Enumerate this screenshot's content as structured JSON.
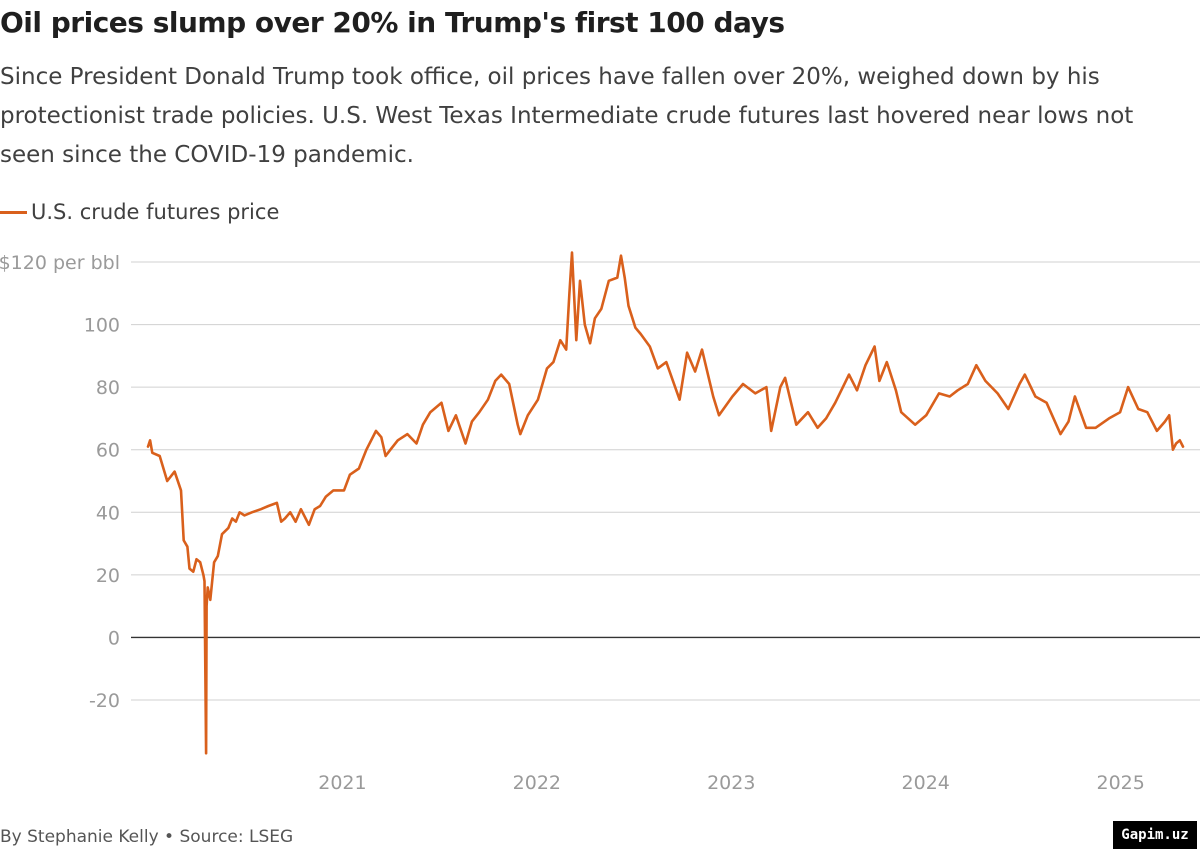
{
  "header": {
    "title": "Oil prices slump over 20% in Trump's first 100 days",
    "subtitle": "Since President Donald Trump took office, oil prices have fallen over 20%, weighed down by his protectionist trade policies. U.S. West Texas Intermediate crude futures last hovered near lows not seen since the COVID-19 pandemic."
  },
  "footer": {
    "credit": "By Stephanie Kelly • Source: LSEG",
    "watermark": "Gapim.uz"
  },
  "colors": {
    "line": "#d9601c",
    "grid": "#d0d0d0",
    "zero": "#333333",
    "tick": "#9a9a9a"
  },
  "chart_data": {
    "type": "line",
    "title": "Oil prices slump over 20% in Trump's first 100 days",
    "ylabel": "",
    "xlabel": "",
    "ylim": [
      -40,
      120
    ],
    "xlim": [
      "2020-01-02",
      "2025-04-28"
    ],
    "grid": true,
    "legend_position": "top-left",
    "yticks": [
      {
        "value": 120,
        "label": "$120 per bbl"
      },
      {
        "value": 100,
        "label": "100"
      },
      {
        "value": 80,
        "label": "80"
      },
      {
        "value": 60,
        "label": "60"
      },
      {
        "value": 40,
        "label": "40"
      },
      {
        "value": 20,
        "label": "20"
      },
      {
        "value": 0,
        "label": "0"
      },
      {
        "value": -20,
        "label": "-20"
      }
    ],
    "xticks": [
      {
        "value": "2021-01-01",
        "label": "2021"
      },
      {
        "value": "2022-01-01",
        "label": "2022"
      },
      {
        "value": "2023-01-01",
        "label": "2023"
      },
      {
        "value": "2024-01-01",
        "label": "2024"
      },
      {
        "value": "2025-01-01",
        "label": "2025"
      }
    ],
    "series": [
      {
        "name": "U.S. crude futures price",
        "color": "#d9601c",
        "points": [
          [
            "2020-01-02",
            61
          ],
          [
            "2020-01-06",
            63
          ],
          [
            "2020-01-10",
            59
          ],
          [
            "2020-01-24",
            58
          ],
          [
            "2020-02-07",
            50
          ],
          [
            "2020-02-21",
            53
          ],
          [
            "2020-03-04",
            47
          ],
          [
            "2020-03-09",
            31
          ],
          [
            "2020-03-16",
            29
          ],
          [
            "2020-03-20",
            22
          ],
          [
            "2020-03-27",
            21
          ],
          [
            "2020-04-02",
            25
          ],
          [
            "2020-04-09",
            24
          ],
          [
            "2020-04-15",
            20
          ],
          [
            "2020-04-17",
            18
          ],
          [
            "2020-04-20",
            -37
          ],
          [
            "2020-04-21",
            10
          ],
          [
            "2020-04-23",
            16
          ],
          [
            "2020-04-28",
            12
          ],
          [
            "2020-05-05",
            24
          ],
          [
            "2020-05-12",
            26
          ],
          [
            "2020-05-20",
            33
          ],
          [
            "2020-06-01",
            35
          ],
          [
            "2020-06-08",
            38
          ],
          [
            "2020-06-15",
            37
          ],
          [
            "2020-06-22",
            40
          ],
          [
            "2020-07-01",
            39
          ],
          [
            "2020-07-15",
            40
          ],
          [
            "2020-08-01",
            41
          ],
          [
            "2020-08-15",
            42
          ],
          [
            "2020-08-31",
            43
          ],
          [
            "2020-09-08",
            37
          ],
          [
            "2020-09-15",
            38
          ],
          [
            "2020-09-25",
            40
          ],
          [
            "2020-10-05",
            37
          ],
          [
            "2020-10-15",
            41
          ],
          [
            "2020-10-30",
            36
          ],
          [
            "2020-11-10",
            41
          ],
          [
            "2020-11-20",
            42
          ],
          [
            "2020-12-01",
            45
          ],
          [
            "2020-12-15",
            47
          ],
          [
            "2021-01-04",
            47
          ],
          [
            "2021-01-15",
            52
          ],
          [
            "2021-02-01",
            54
          ],
          [
            "2021-02-15",
            60
          ],
          [
            "2021-03-05",
            66
          ],
          [
            "2021-03-15",
            64
          ],
          [
            "2021-03-23",
            58
          ],
          [
            "2021-04-01",
            60
          ],
          [
            "2021-04-15",
            63
          ],
          [
            "2021-05-03",
            65
          ],
          [
            "2021-05-20",
            62
          ],
          [
            "2021-06-01",
            68
          ],
          [
            "2021-06-15",
            72
          ],
          [
            "2021-07-06",
            75
          ],
          [
            "2021-07-19",
            66
          ],
          [
            "2021-08-02",
            71
          ],
          [
            "2021-08-20",
            62
          ],
          [
            "2021-09-01",
            69
          ],
          [
            "2021-09-15",
            72
          ],
          [
            "2021-10-01",
            76
          ],
          [
            "2021-10-15",
            82
          ],
          [
            "2021-10-26",
            84
          ],
          [
            "2021-11-10",
            81
          ],
          [
            "2021-11-26",
            68
          ],
          [
            "2021-12-01",
            65
          ],
          [
            "2021-12-15",
            71
          ],
          [
            "2022-01-03",
            76
          ],
          [
            "2022-01-20",
            86
          ],
          [
            "2022-02-01",
            88
          ],
          [
            "2022-02-14",
            95
          ],
          [
            "2022-02-25",
            92
          ],
          [
            "2022-03-03",
            110
          ],
          [
            "2022-03-08",
            123
          ],
          [
            "2022-03-16",
            95
          ],
          [
            "2022-03-23",
            114
          ],
          [
            "2022-04-01",
            100
          ],
          [
            "2022-04-11",
            94
          ],
          [
            "2022-04-20",
            102
          ],
          [
            "2022-05-02",
            105
          ],
          [
            "2022-05-16",
            114
          ],
          [
            "2022-06-01",
            115
          ],
          [
            "2022-06-08",
            122
          ],
          [
            "2022-06-15",
            115
          ],
          [
            "2022-06-22",
            106
          ],
          [
            "2022-07-05",
            99
          ],
          [
            "2022-07-15",
            97
          ],
          [
            "2022-08-01",
            93
          ],
          [
            "2022-08-16",
            86
          ],
          [
            "2022-09-01",
            88
          ],
          [
            "2022-09-26",
            76
          ],
          [
            "2022-10-10",
            91
          ],
          [
            "2022-10-25",
            85
          ],
          [
            "2022-11-07",
            92
          ],
          [
            "2022-11-28",
            77
          ],
          [
            "2022-12-09",
            71
          ],
          [
            "2023-01-03",
            77
          ],
          [
            "2023-01-23",
            81
          ],
          [
            "2023-02-15",
            78
          ],
          [
            "2023-03-08",
            80
          ],
          [
            "2023-03-17",
            66
          ],
          [
            "2023-04-03",
            80
          ],
          [
            "2023-04-12",
            83
          ],
          [
            "2023-05-03",
            68
          ],
          [
            "2023-05-25",
            72
          ],
          [
            "2023-06-12",
            67
          ],
          [
            "2023-06-28",
            70
          ],
          [
            "2023-07-15",
            75
          ],
          [
            "2023-08-10",
            84
          ],
          [
            "2023-08-25",
            79
          ],
          [
            "2023-09-10",
            87
          ],
          [
            "2023-09-27",
            93
          ],
          [
            "2023-10-06",
            82
          ],
          [
            "2023-10-20",
            88
          ],
          [
            "2023-11-06",
            79
          ],
          [
            "2023-11-16",
            72
          ],
          [
            "2023-12-12",
            68
          ],
          [
            "2024-01-02",
            71
          ],
          [
            "2024-01-26",
            78
          ],
          [
            "2024-02-15",
            77
          ],
          [
            "2024-03-01",
            79
          ],
          [
            "2024-03-20",
            81
          ],
          [
            "2024-04-05",
            87
          ],
          [
            "2024-04-22",
            82
          ],
          [
            "2024-05-15",
            78
          ],
          [
            "2024-06-04",
            73
          ],
          [
            "2024-06-25",
            81
          ],
          [
            "2024-07-05",
            84
          ],
          [
            "2024-07-25",
            77
          ],
          [
            "2024-08-15",
            75
          ],
          [
            "2024-09-10",
            65
          ],
          [
            "2024-09-25",
            69
          ],
          [
            "2024-10-07",
            77
          ],
          [
            "2024-10-28",
            67
          ],
          [
            "2024-11-15",
            67
          ],
          [
            "2024-12-10",
            70
          ],
          [
            "2024-12-31",
            72
          ],
          [
            "2025-01-15",
            80
          ],
          [
            "2025-02-03",
            73
          ],
          [
            "2025-02-20",
            72
          ],
          [
            "2025-03-10",
            66
          ],
          [
            "2025-03-25",
            69
          ],
          [
            "2025-04-02",
            71
          ],
          [
            "2025-04-09",
            60
          ],
          [
            "2025-04-15",
            62
          ],
          [
            "2025-04-22",
            63
          ],
          [
            "2025-04-28",
            61
          ]
        ]
      }
    ]
  }
}
